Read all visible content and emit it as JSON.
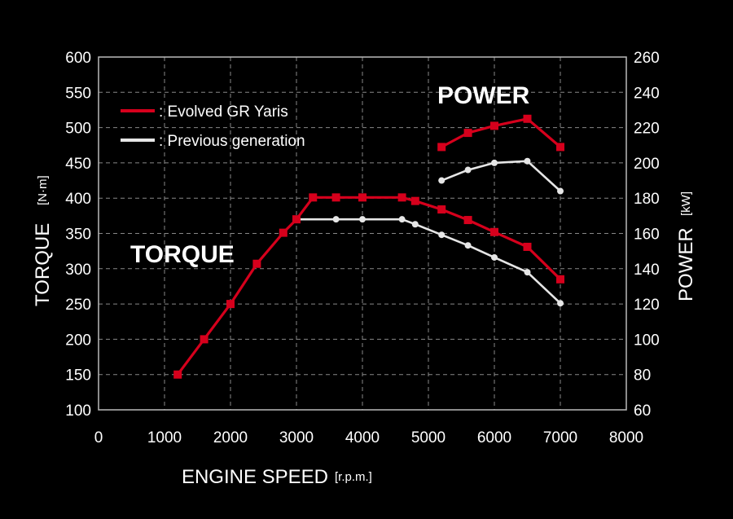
{
  "chart_data": {
    "type": "line",
    "x_axis": {
      "title": "ENGINE SPEED",
      "unit": "[r.p.m.]",
      "range": [
        0,
        8000
      ],
      "ticks": [
        "0",
        "1000",
        "2000",
        "3000",
        "4000",
        "5000",
        "6000",
        "7000",
        "8000"
      ]
    },
    "y_left": {
      "title": "TORQUE",
      "unit": "[N·m]",
      "range": [
        100,
        600
      ],
      "ticks": [
        "100",
        "150",
        "200",
        "250",
        "300",
        "350",
        "400",
        "450",
        "500",
        "550",
        "600"
      ]
    },
    "y_right": {
      "title": "POWER",
      "unit": "[kW]",
      "range": [
        60,
        260
      ],
      "ticks": [
        "60",
        "80",
        "100",
        "120",
        "140",
        "160",
        "180",
        "200",
        "220",
        "240",
        "260"
      ]
    },
    "labels": {
      "torque": "TORQUE",
      "power": "POWER"
    },
    "legend": {
      "placement": "top-left",
      "items": [
        {
          "name": "Evolved GR Yaris",
          "text": ": Evolved GR Yaris",
          "color": "#d6001c",
          "marker": "square"
        },
        {
          "name": "Previous generation",
          "text": ": Previous generation",
          "color": "#e6e6e6",
          "marker": "circle"
        }
      ]
    },
    "grid": true,
    "series": [
      {
        "name": "Evolved GR Yaris",
        "quantity": "torque",
        "axis": "left",
        "color": "#d6001c",
        "marker": "square",
        "x": [
          1200,
          1600,
          2000,
          2400,
          2800,
          3000,
          3250,
          3600,
          4000,
          4600,
          4800,
          5200,
          5600,
          6000,
          6500,
          7000
        ],
        "y": [
          150,
          200,
          250,
          307,
          351,
          370,
          401,
          401,
          401,
          401,
          396,
          384,
          369,
          352,
          331,
          285
        ]
      },
      {
        "name": "Previous generation",
        "quantity": "torque",
        "axis": "left",
        "color": "#e6e6e6",
        "marker": "circle",
        "x": [
          3000,
          3600,
          4000,
          4600,
          4800,
          5200,
          5600,
          6000,
          6500,
          7000
        ],
        "y": [
          370,
          370,
          370,
          370,
          363,
          348,
          333,
          316,
          295,
          251
        ]
      },
      {
        "name": "Evolved GR Yaris",
        "quantity": "power",
        "axis": "right",
        "color": "#d6001c",
        "marker": "square",
        "x": [
          5200,
          5600,
          6000,
          6500,
          7000
        ],
        "y": [
          209,
          217,
          221,
          225,
          209
        ]
      },
      {
        "name": "Previous generation",
        "quantity": "power",
        "axis": "right",
        "color": "#e6e6e6",
        "marker": "circle",
        "x": [
          5200,
          5600,
          6000,
          6500,
          7000
        ],
        "y": [
          190,
          196,
          200,
          201,
          184
        ]
      }
    ]
  }
}
